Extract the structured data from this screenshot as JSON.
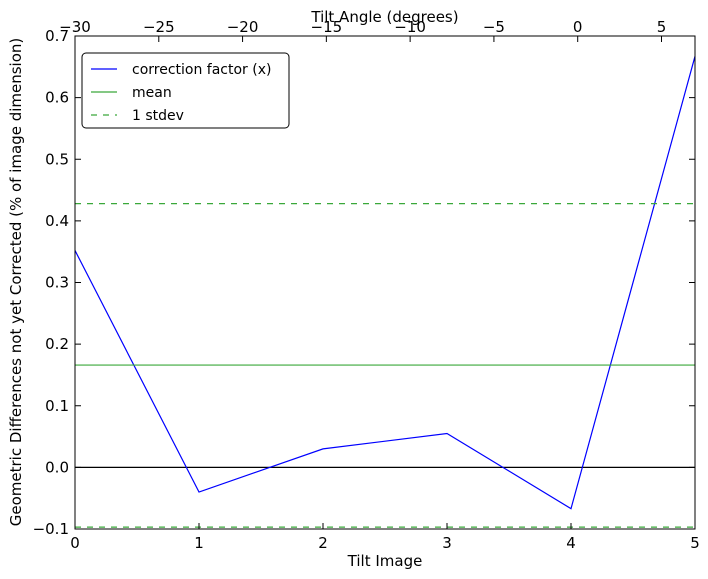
{
  "chart_data": {
    "type": "line",
    "xlabel": "Tilt Image",
    "ylabel": "Geometric Differences not yet Corrected (% of image dimension)",
    "top_xlabel": "Tilt Angle (degrees)",
    "xlim": [
      0,
      5
    ],
    "ylim": [
      -0.1,
      0.7
    ],
    "x_ticks": [
      0,
      1,
      2,
      3,
      4,
      5
    ],
    "y_ticks": [
      -0.1,
      0.0,
      0.1,
      0.2,
      0.3,
      0.4,
      0.5,
      0.6,
      0.7
    ],
    "y_tick_labels": [
      "−0.1",
      "0.0",
      "0.1",
      "0.2",
      "0.3",
      "0.4",
      "0.5",
      "0.6",
      "0.7"
    ],
    "top_xlim": [
      -30,
      7
    ],
    "top_x_ticks": [
      -30,
      -25,
      -20,
      -15,
      -10,
      -5,
      0,
      5
    ],
    "top_x_tick_labels": [
      "−30",
      "−25",
      "−20",
      "−15",
      "−10",
      "−5",
      "0",
      "5"
    ],
    "grid": false,
    "legend_position": "top-left",
    "series": [
      {
        "name": "correction factor (x)",
        "style": "solid",
        "color": "#0000ff",
        "x": [
          0,
          1,
          2,
          3,
          4,
          5
        ],
        "values": [
          0.352,
          -0.04,
          0.03,
          0.055,
          -0.067,
          0.667
        ]
      },
      {
        "name": "mean",
        "style": "solid",
        "color": "#3aa83a",
        "x": [
          0,
          5
        ],
        "values": [
          0.166,
          0.166
        ]
      },
      {
        "name": "1 stdev",
        "style": "dashed",
        "color": "#3aa83a",
        "x": [
          0,
          5
        ],
        "values": [
          0.428,
          0.428
        ],
        "lower_values": [
          -0.097,
          -0.097
        ]
      }
    ],
    "reference_line": {
      "y": 0.0,
      "color": "#000000"
    }
  }
}
